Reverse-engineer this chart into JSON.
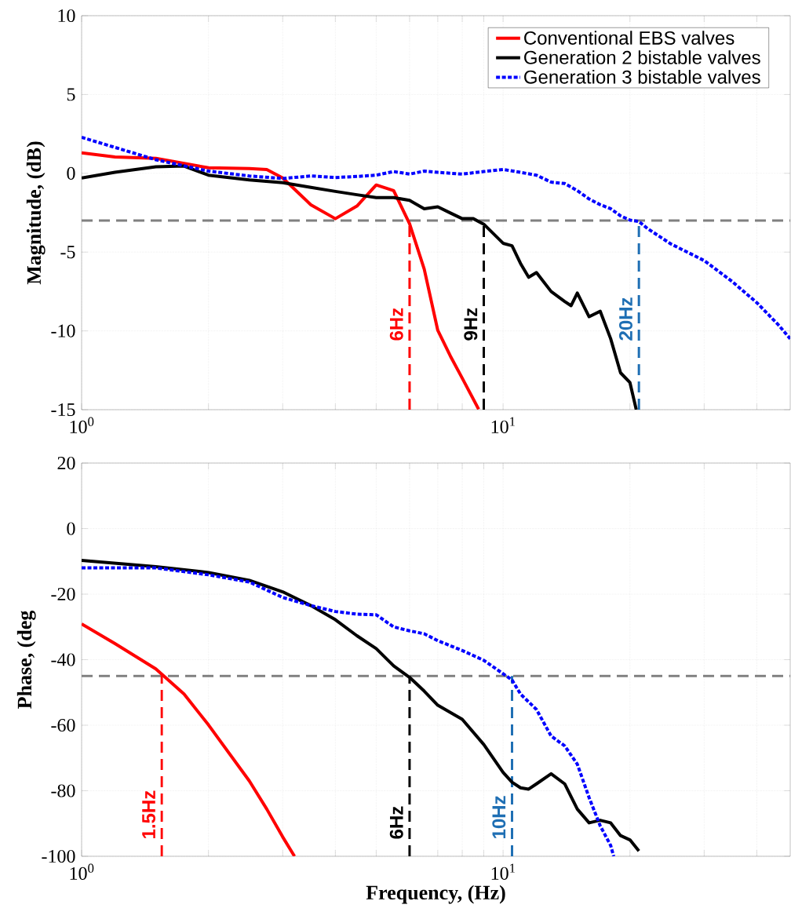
{
  "chart_data": [
    {
      "type": "line",
      "ylabel": "Magnitude, (dB)",
      "log": "x",
      "grid": true,
      "legend": "top right",
      "xlim": [
        1,
        48
      ],
      "ylim": [
        -15,
        10
      ],
      "xticks": [
        {
          "value": 1,
          "label": "10$^{0}$"
        },
        {
          "value": 2,
          "label": null
        },
        {
          "value": 3,
          "label": null
        },
        {
          "value": 4,
          "label": null
        },
        {
          "value": 5,
          "label": null
        },
        {
          "value": 6,
          "label": null
        },
        {
          "value": 7,
          "label": null
        },
        {
          "value": 8,
          "label": null
        },
        {
          "value": 9,
          "label": null
        },
        {
          "value": 10,
          "label": "10$^{1}$"
        },
        {
          "value": 20,
          "label": null
        },
        {
          "value": 30,
          "label": null
        },
        {
          "value": 40,
          "label": null
        }
      ],
      "yticks": [
        -15,
        -10,
        -5,
        0,
        5,
        10
      ],
      "series": [
        {
          "name": "Conventional EBS valves",
          "color": "#ff0000",
          "line_style": "solid",
          "x": [
            1,
            1.2,
            1.5,
            2,
            2.5,
            2.75,
            3,
            3.5,
            4,
            4.5,
            5,
            5.5,
            6,
            6.5,
            7,
            7.5,
            8,
            8.75
          ],
          "values": [
            1.3,
            1.04,
            0.95,
            0.35,
            0.3,
            0.24,
            -0.3,
            -2.0,
            -2.88,
            -2.08,
            -0.74,
            -1.1,
            -3.2,
            -6.08,
            -9.97,
            -11.6,
            -13.0,
            -14.97
          ]
        },
        {
          "name": "Generation 2 bistable valves",
          "color": "#000000",
          "line_style": "solid",
          "x": [
            1,
            1.2,
            1.5,
            1.75,
            2,
            2.5,
            3,
            3.5,
            4,
            4.5,
            5,
            5.5,
            6,
            6.5,
            7,
            7.5,
            8,
            8.5,
            9,
            10,
            10.5,
            11,
            11.5,
            12,
            13,
            14,
            14.5,
            15,
            16,
            17,
            18,
            19,
            20,
            20.7
          ],
          "values": [
            -0.3,
            0.06,
            0.41,
            0.46,
            -0.12,
            -0.42,
            -0.6,
            -0.89,
            -1.15,
            -1.36,
            -1.54,
            -1.54,
            -1.72,
            -2.25,
            -2.13,
            -2.52,
            -2.88,
            -2.88,
            -3.23,
            -4.44,
            -4.6,
            -5.72,
            -6.6,
            -6.3,
            -7.5,
            -8.13,
            -8.4,
            -7.6,
            -9.1,
            -8.75,
            -10.5,
            -12.66,
            -13.28,
            -15
          ]
        },
        {
          "name": "Generation 3 bistable valves",
          "color": "#0000ff",
          "line_style": "dotted",
          "x": [
            1,
            1.5,
            2,
            2.5,
            3,
            3.5,
            4,
            4.5,
            5,
            5.5,
            6,
            6.5,
            7,
            8,
            9,
            10,
            11,
            12,
            13,
            14,
            15,
            16,
            17,
            18,
            19,
            20,
            21,
            22,
            25,
            30,
            35,
            40,
            45,
            48
          ],
          "values": [
            2.28,
            0.86,
            0.14,
            -0.17,
            -0.33,
            -0.17,
            -0.27,
            -0.2,
            -0.12,
            0.11,
            -0.05,
            0.14,
            0.06,
            -0.05,
            0.11,
            0.24,
            0.06,
            -0.12,
            -0.56,
            -0.65,
            -1.1,
            -1.63,
            -1.99,
            -2.25,
            -2.7,
            -2.97,
            -3.06,
            -3.5,
            -4.48,
            -5.54,
            -6.88,
            -8.21,
            -9.62,
            -10.5
          ]
        }
      ],
      "ref_lines": [
        {
          "axis": "y",
          "value": -3,
          "color": "#808080",
          "line_style": "dashed"
        },
        {
          "axis": "x",
          "value": 6,
          "label": "6Hz",
          "color": "#ff0000",
          "line_style": "dashed"
        },
        {
          "axis": "x",
          "value": 9,
          "label": "9Hz",
          "color": "#000000",
          "line_style": "dashed"
        },
        {
          "axis": "x",
          "value": 21,
          "label": "20Hz",
          "color": "#1f6fb4",
          "line_style": "dashed"
        }
      ]
    },
    {
      "type": "line",
      "xlabel": "Frequency, (Hz)",
      "ylabel": "Phase, (deg",
      "log": "x",
      "grid": true,
      "xlim": [
        1,
        48
      ],
      "ylim": [
        -100,
        20
      ],
      "xticks": [
        {
          "value": 1,
          "label": "10$^{0}$"
        },
        {
          "value": 2,
          "label": null
        },
        {
          "value": 3,
          "label": null
        },
        {
          "value": 4,
          "label": null
        },
        {
          "value": 5,
          "label": null
        },
        {
          "value": 6,
          "label": null
        },
        {
          "value": 7,
          "label": null
        },
        {
          "value": 8,
          "label": null
        },
        {
          "value": 9,
          "label": null
        },
        {
          "value": 10,
          "label": "10$^{1}$"
        },
        {
          "value": 20,
          "label": null
        },
        {
          "value": 30,
          "label": null
        },
        {
          "value": 40,
          "label": null
        }
      ],
      "yticks": [
        -100,
        -80,
        -60,
        -40,
        -20,
        0,
        20
      ],
      "series": [
        {
          "color": "#ff0000",
          "line_style": "solid",
          "x": [
            1,
            1.2,
            1.5,
            1.75,
            2,
            2.5,
            2.75,
            3,
            3.2
          ],
          "values": [
            -29.1,
            -35.1,
            -42.8,
            -50.5,
            -59.9,
            -77,
            -85.6,
            -94.1,
            -100
          ]
        },
        {
          "color": "#000000",
          "line_style": "solid",
          "x": [
            1,
            1.5,
            2,
            2.5,
            3,
            3.5,
            4,
            4.5,
            5,
            5.5,
            6,
            6.5,
            7,
            8,
            9,
            10,
            10.5,
            11,
            11.5,
            12,
            13,
            14,
            15,
            16,
            17,
            18,
            19,
            20,
            21
          ],
          "values": [
            -9.7,
            -11.6,
            -13.4,
            -15.8,
            -19.3,
            -23.5,
            -27.8,
            -32.7,
            -36.6,
            -41.9,
            -45.4,
            -49.6,
            -53.9,
            -58.2,
            -65.9,
            -74.4,
            -77.4,
            -79.1,
            -79.5,
            -77.9,
            -74.8,
            -77.9,
            -85.6,
            -89.8,
            -89,
            -89.8,
            -93.7,
            -95,
            -98.4
          ]
        },
        {
          "color": "#0000ff",
          "line_style": "dotted",
          "x": [
            1,
            1.5,
            2,
            2.5,
            3,
            3.5,
            4,
            4.5,
            5,
            5.5,
            6,
            6.5,
            7,
            8,
            9,
            10,
            10.5,
            11,
            12,
            13,
            14,
            15,
            16,
            17,
            18,
            18.3
          ],
          "values": [
            -12,
            -12,
            -14.1,
            -16.3,
            -21,
            -23.5,
            -25.3,
            -26.1,
            -26.3,
            -30,
            -31.2,
            -32.1,
            -34.2,
            -37.2,
            -40.2,
            -44.3,
            -46.2,
            -50.5,
            -55.2,
            -63.3,
            -66.3,
            -71.9,
            -82.1,
            -90.7,
            -96.7,
            -100
          ]
        }
      ],
      "ref_lines": [
        {
          "axis": "y",
          "value": -45,
          "color": "#808080",
          "line_style": "dashed"
        },
        {
          "axis": "x",
          "value": 1.55,
          "label": "1.5Hz",
          "color": "#ff0000",
          "line_style": "dashed"
        },
        {
          "axis": "x",
          "value": 6,
          "label": "6Hz",
          "color": "#000000",
          "line_style": "dashed"
        },
        {
          "axis": "x",
          "value": 10.5,
          "label": "10Hz",
          "color": "#1f6fb4",
          "line_style": "dashed"
        }
      ]
    }
  ]
}
